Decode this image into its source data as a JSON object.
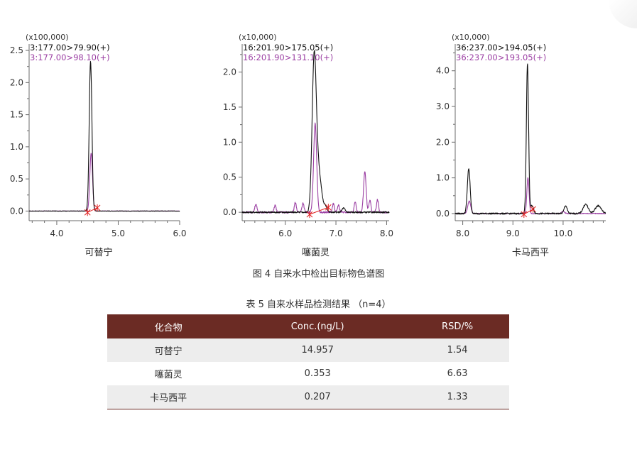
{
  "colors": {
    "primary_trace": "#111111",
    "secondary_trace": "#9b3fa3",
    "marker": "#e02020",
    "header_bg": "#6b2b24"
  },
  "chart_data": [
    {
      "type": "line",
      "name": "可替宁",
      "scale_label": "(x100,000)",
      "xlim": [
        3.55,
        6.0
      ],
      "ylim": [
        -0.15,
        2.6
      ],
      "xticks": [
        "4.0",
        "5.0",
        "6.0"
      ],
      "yticks": [
        "0.0",
        "0.5",
        "1.0",
        "1.5",
        "2.0",
        "2.5"
      ],
      "series": [
        {
          "name": "3:177.00>79.90(+)",
          "peaks": [
            [
              4.55,
              2.33,
              0.022
            ]
          ],
          "noise": 0.006
        },
        {
          "name": "3:177.00>98.10(+)",
          "peaks": [
            [
              4.56,
              0.9,
              0.022
            ]
          ],
          "noise": 0.006
        }
      ],
      "markers": [
        [
          4.5,
          -0.02
        ],
        [
          4.66,
          0.05
        ]
      ]
    },
    {
      "type": "line",
      "name": "噻菌灵",
      "scale_label": "(x10,000)",
      "xlim": [
        5.15,
        8.05
      ],
      "ylim": [
        -0.12,
        2.4
      ],
      "xticks": [
        "6.0",
        "7.0",
        "8.0"
      ],
      "yticks": [
        "0.0",
        "0.5",
        "1.0",
        "1.5",
        "2.0"
      ],
      "series": [
        {
          "name": "16:201.90>175.05(+)",
          "peaks": [
            [
              6.57,
              2.05,
              0.04
            ],
            [
              6.65,
              0.6,
              0.06
            ],
            [
              6.8,
              0.07,
              0.03
            ],
            [
              7.15,
              0.06,
              0.03
            ]
          ],
          "noise": 0.02
        },
        {
          "name": "16:201.90>131.10(+)",
          "peaks": [
            [
              6.59,
              1.27,
              0.03
            ],
            [
              7.57,
              0.58,
              0.025
            ],
            [
              7.67,
              0.17,
              0.02
            ],
            [
              6.95,
              0.12,
              0.02
            ],
            [
              5.42,
              0.12,
              0.02
            ],
            [
              6.2,
              0.14,
              0.02
            ],
            [
              6.35,
              0.13,
              0.02
            ],
            [
              7.82,
              0.18,
              0.02
            ],
            [
              7.38,
              0.14,
              0.02
            ],
            [
              5.8,
              0.1,
              0.02
            ],
            [
              7.05,
              0.1,
              0.02
            ]
          ],
          "noise": 0.025
        }
      ],
      "markers": [
        [
          6.48,
          -0.03
        ],
        [
          6.85,
          0.07
        ]
      ]
    },
    {
      "type": "line",
      "name": "卡马西平",
      "scale_label": "(x10,000)",
      "xlim": [
        7.85,
        10.85
      ],
      "ylim": [
        -0.2,
        4.75
      ],
      "xticks": [
        "8.0",
        "9.0",
        "10.0"
      ],
      "yticks": [
        "0.0",
        "1.0",
        "2.0",
        "3.0",
        "4.0"
      ],
      "series": [
        {
          "name": "36:237.00>194.05(+)",
          "peaks": [
            [
              8.12,
              1.25,
              0.028
            ],
            [
              9.29,
              4.2,
              0.022
            ],
            [
              9.38,
              0.22,
              0.03
            ],
            [
              10.05,
              0.22,
              0.03
            ],
            [
              10.45,
              0.26,
              0.05
            ],
            [
              10.7,
              0.22,
              0.06
            ]
          ],
          "noise": 0.04
        },
        {
          "name": "36:237.00>193.05(+)",
          "peaks": [
            [
              8.13,
              0.35,
              0.03
            ],
            [
              9.3,
              1.0,
              0.022
            ],
            [
              10.0,
              0.06,
              0.03
            ]
          ],
          "noise": 0.02
        }
      ],
      "markers": [
        [
          9.22,
          -0.02
        ],
        [
          9.4,
          0.12
        ]
      ]
    }
  ],
  "figure_caption": "图 4 自来水中检出目标物色谱图",
  "table": {
    "caption": "表 5 自来水样品检测结果 （n=4）",
    "headers": [
      "化合物",
      "Conc.(ng/L)",
      "RSD/%"
    ],
    "rows": [
      [
        "可替宁",
        "14.957",
        "1.54"
      ],
      [
        "噻菌灵",
        "0.353",
        "6.63"
      ],
      [
        "卡马西平",
        "0.207",
        "1.33"
      ]
    ]
  }
}
